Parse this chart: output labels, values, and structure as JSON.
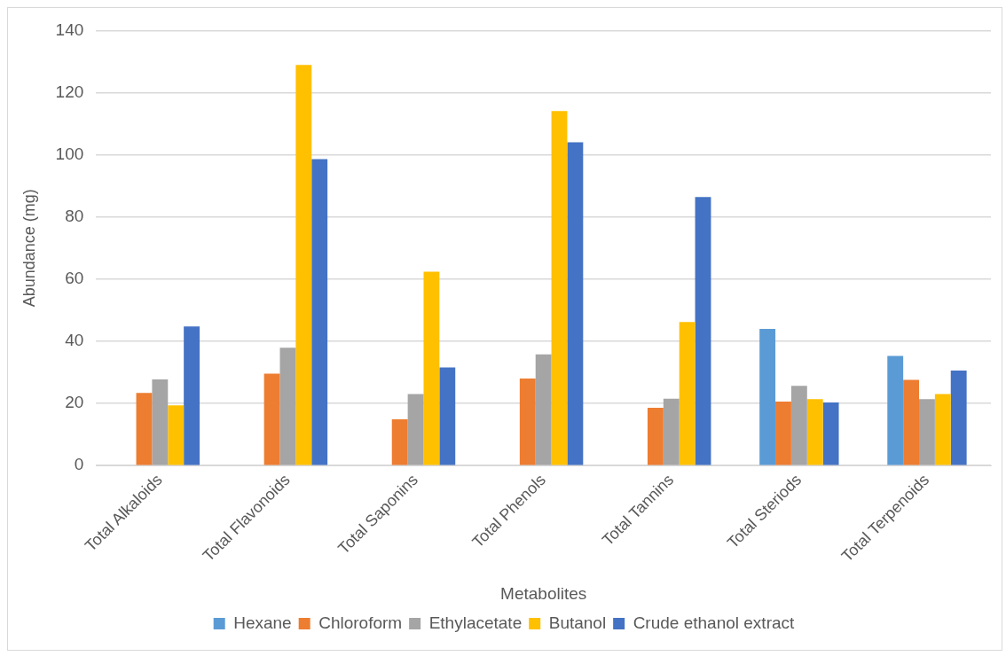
{
  "chart_data": {
    "type": "bar",
    "xlabel": "Metabolites",
    "ylabel": "Abundance (mg)",
    "categories": [
      "Total Alkaloids",
      "Total Flavonoids",
      "Total Saponins",
      "Total Phenols",
      "Total Tannins",
      "Total Steriods",
      "Total Terpenoids"
    ],
    "series": [
      {
        "name": "Hexane",
        "color": "#5b9bd5",
        "values": [
          null,
          null,
          null,
          null,
          null,
          44.0,
          35.3
        ]
      },
      {
        "name": "Chloroform",
        "color": "#ed7d31",
        "values": [
          23.4,
          29.6,
          14.9,
          28.0,
          18.6,
          20.6,
          27.6
        ]
      },
      {
        "name": "Ethylacetate",
        "color": "#a5a5a5",
        "values": [
          27.7,
          37.9,
          23.0,
          35.8,
          21.5,
          25.7,
          21.4
        ]
      },
      {
        "name": "Butanol",
        "color": "#ffc000",
        "values": [
          19.4,
          128.9,
          62.4,
          114.1,
          46.2,
          21.4,
          23.0
        ]
      },
      {
        "name": "Crude ethanol extract",
        "color": "#4472c4",
        "values": [
          44.8,
          98.6,
          31.6,
          104.0,
          86.4,
          20.3,
          30.6
        ]
      }
    ],
    "ylim": [
      0,
      140
    ],
    "yticks": [
      0,
      20,
      40,
      60,
      80,
      100,
      120,
      140
    ],
    "grid": "y",
    "legend": "bottom"
  }
}
